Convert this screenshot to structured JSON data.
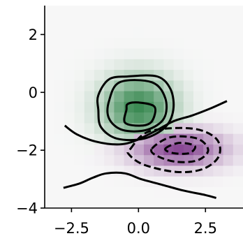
{
  "chart_data": {
    "type": "heatmap",
    "title": "",
    "xlabel": "",
    "ylabel": "",
    "xlim": [
      -3.5,
      3.9
    ],
    "ylim": [
      -4,
      3
    ],
    "x_ticks": [
      -2.5,
      0.0,
      2.5
    ],
    "x_tick_labels": [
      "−2.5",
      "0.0",
      "2.5"
    ],
    "y_ticks": [
      2,
      0,
      -2,
      -4
    ],
    "y_tick_labels": [
      "2",
      "0",
      "−2",
      "−4"
    ],
    "grid": false,
    "legend": "none",
    "colormap": "PRGn",
    "background_color": "#f7f7f7",
    "heatmap_grid": {
      "x_min": -3.5,
      "x_max": 3.9,
      "y_min": -4,
      "y_max": 3,
      "nx": 20,
      "ny": 19
    },
    "components": [
      {
        "sign": 1,
        "center": [
          0,
          -0.5
        ],
        "sigma": [
          0.95,
          0.75
        ],
        "peak": 1.0,
        "color_hex": "#1b7837"
      },
      {
        "sign": -1,
        "center": [
          1.5,
          -1.95
        ],
        "sigma": [
          1.2,
          0.45
        ],
        "peak": 1.0,
        "color_hex": "#762a83"
      }
    ],
    "contours_positive": [
      {
        "level": 0.25,
        "style": "solid",
        "points": [
          [
            -1.5,
            -0.1
          ],
          [
            -1.1,
            0.45
          ],
          [
            -0.4,
            0.55
          ],
          [
            0.7,
            0.55
          ],
          [
            1.2,
            0.1
          ],
          [
            1.3,
            -0.6
          ],
          [
            1.0,
            -1.2
          ],
          [
            0.2,
            -1.6
          ],
          [
            -0.8,
            -1.6
          ],
          [
            -1.4,
            -1.2
          ],
          [
            -1.5,
            -0.6
          ]
        ]
      },
      {
        "level": 0.5,
        "style": "solid",
        "points": [
          [
            -1.1,
            -0.3
          ],
          [
            -0.7,
            0.35
          ],
          [
            0.5,
            0.35
          ],
          [
            1.0,
            -0.2
          ],
          [
            0.95,
            -0.9
          ],
          [
            0.3,
            -1.3
          ],
          [
            -0.6,
            -1.3
          ],
          [
            -1.1,
            -0.9
          ]
        ]
      },
      {
        "level": 0.75,
        "style": "solid",
        "points": [
          [
            -0.4,
            -0.4
          ],
          [
            0.0,
            -0.35
          ],
          [
            0.6,
            -0.5
          ],
          [
            0.5,
            -1.0
          ],
          [
            0.1,
            -1.15
          ],
          [
            -0.5,
            -1.05
          ],
          [
            -0.45,
            -0.6
          ]
        ]
      }
    ],
    "contours_negative": [
      {
        "level": -0.25,
        "style": "dashed",
        "points": [
          [
            -0.3,
            -1.95
          ],
          [
            0.4,
            -1.35
          ],
          [
            2.0,
            -1.25
          ],
          [
            2.9,
            -1.6
          ],
          [
            3.0,
            -2.2
          ],
          [
            2.4,
            -2.65
          ],
          [
            1.4,
            -2.75
          ],
          [
            0.2,
            -2.5
          ],
          [
            -0.35,
            -2.15
          ]
        ]
      },
      {
        "level": -0.5,
        "style": "dashed",
        "points": [
          [
            0.5,
            -1.95
          ],
          [
            1.2,
            -1.55
          ],
          [
            2.2,
            -1.6
          ],
          [
            2.6,
            -2.0
          ],
          [
            2.2,
            -2.35
          ],
          [
            1.4,
            -2.4
          ],
          [
            0.7,
            -2.2
          ]
        ]
      },
      {
        "level": -0.75,
        "style": "dashed",
        "points": [
          [
            1.0,
            -1.95
          ],
          [
            1.5,
            -1.75
          ],
          [
            2.1,
            -1.85
          ],
          [
            1.9,
            -2.1
          ],
          [
            1.3,
            -2.1
          ]
        ]
      }
    ],
    "zero_contours": [
      {
        "level": 0,
        "style": "solid",
        "points": [
          [
            -2.75,
            -1.15
          ],
          [
            -2.3,
            -1.45
          ],
          [
            -1.6,
            -1.7
          ],
          [
            -0.8,
            -1.8
          ],
          [
            -0.2,
            -1.7
          ],
          [
            0.6,
            -1.35
          ],
          [
            1.3,
            -1.0
          ],
          [
            2.0,
            -0.8
          ],
          [
            2.7,
            -0.55
          ],
          [
            3.3,
            -0.3
          ]
        ]
      },
      {
        "level": 0,
        "style": "solid",
        "points": [
          [
            -2.8,
            -3.3
          ],
          [
            -2.2,
            -3.15
          ],
          [
            -1.7,
            -2.95
          ],
          [
            -1.2,
            -2.8
          ],
          [
            -0.5,
            -2.8
          ],
          [
            0.1,
            -3.0
          ],
          [
            0.9,
            -3.2
          ],
          [
            1.7,
            -3.4
          ],
          [
            2.5,
            -3.55
          ],
          [
            2.9,
            -3.65
          ]
        ]
      }
    ]
  }
}
